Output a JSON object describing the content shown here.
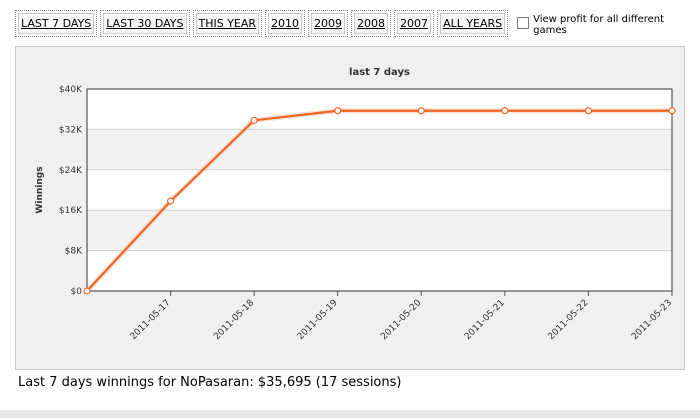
{
  "toolbar": {
    "ranges": [
      "LAST 7 DAYS",
      "LAST 30 DAYS",
      "THIS YEAR",
      "2010",
      "2009",
      "2008",
      "2007",
      "ALL YEARS"
    ],
    "compare_label": "View profit for all different games"
  },
  "colors": {
    "line": "#f26522",
    "panel_bg": "#f0f0f0",
    "plot_band": "#f3f3f3"
  },
  "chart_data": {
    "type": "line",
    "title": "last 7 days",
    "xlabel": "",
    "ylabel": "Winnings",
    "categories": [
      "",
      "2011-05-17",
      "2011-05-18",
      "2011-05-19",
      "2011-05-20",
      "2011-05-21",
      "2011-05-22",
      "2011-05-23"
    ],
    "values": [
      0,
      17800,
      33800,
      35695,
      35695,
      35695,
      35695,
      35695
    ],
    "y_ticks": [
      0,
      8000,
      16000,
      24000,
      32000,
      40000
    ],
    "y_tick_labels": [
      "$0",
      "$8K",
      "$16K",
      "$24K",
      "$32K",
      "$40K"
    ],
    "ylim": [
      0,
      40000
    ],
    "grid": true,
    "legend": "none"
  },
  "footer": {
    "summary": "Last 7 days winnings for NoPasaran: $35,695 (17 sessions)"
  }
}
